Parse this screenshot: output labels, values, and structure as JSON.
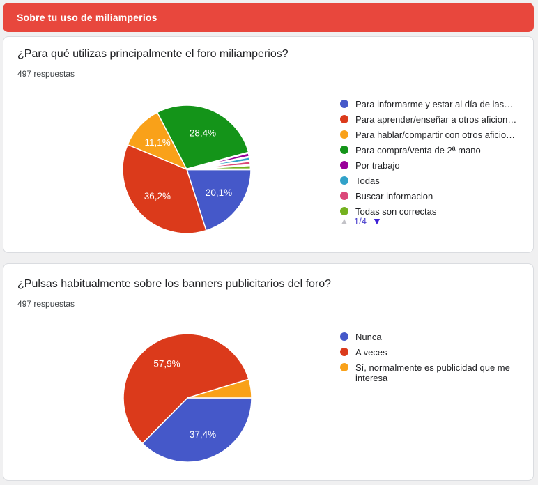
{
  "section_header": {
    "title": "Sobre tu uso de miliamperios",
    "background": "#E8473D"
  },
  "chart_data": [
    {
      "type": "pie",
      "question": "¿Para qué utilizas principalmente el foro miliamperios?",
      "responses_label": "497 respuestas",
      "legend_position": "right",
      "start_angle_deg": 0,
      "direction": "clockwise",
      "slices": [
        {
          "label": "Para informarme y estar al día de las…",
          "value": 20.1,
          "pct_label": "20,1%",
          "color": "#4558C9"
        },
        {
          "label": "Para aprender/enseñar a otros aficion…",
          "value": 36.2,
          "pct_label": "36,2%",
          "color": "#DB3A1B"
        },
        {
          "label": "Para hablar/compartir con otros aficio…",
          "value": 11.1,
          "pct_label": "11,1%",
          "color": "#F9A119"
        },
        {
          "label": "Para compra/venta de 2ª mano",
          "value": 28.4,
          "pct_label": "28,4%",
          "color": "#149419"
        },
        {
          "label": "Por trabajo",
          "value": 1.05,
          "pct_label": "",
          "color": "#990099"
        },
        {
          "label": "Todas",
          "value": 1.05,
          "pct_label": "",
          "color": "#31A2C9"
        },
        {
          "label": "Buscar informacion",
          "value": 1.05,
          "pct_label": "",
          "color": "#DB4779"
        },
        {
          "label": "Todas son correctas",
          "value": 1.05,
          "pct_label": "",
          "color": "#74B11F"
        }
      ],
      "pagination": {
        "up_icon": "▲",
        "label": "1/4",
        "down_icon": "▼",
        "up_enabled": false,
        "down_enabled": true
      }
    },
    {
      "type": "pie",
      "question": "¿Pulsas habitualmente sobre los banners publicitarios del foro?",
      "responses_label": "497 respuestas",
      "legend_position": "right",
      "start_angle_deg": 0,
      "direction": "clockwise",
      "slices": [
        {
          "label": "Nunca",
          "value": 37.4,
          "pct_label": "37,4%",
          "color": "#4558C9"
        },
        {
          "label": "A veces",
          "value": 57.9,
          "pct_label": "57,9%",
          "color": "#DB3A1B"
        },
        {
          "label": "Sí, normalmente es publicidad que me interesa",
          "value": 4.7,
          "pct_label": "",
          "color": "#F9A119"
        }
      ]
    }
  ]
}
